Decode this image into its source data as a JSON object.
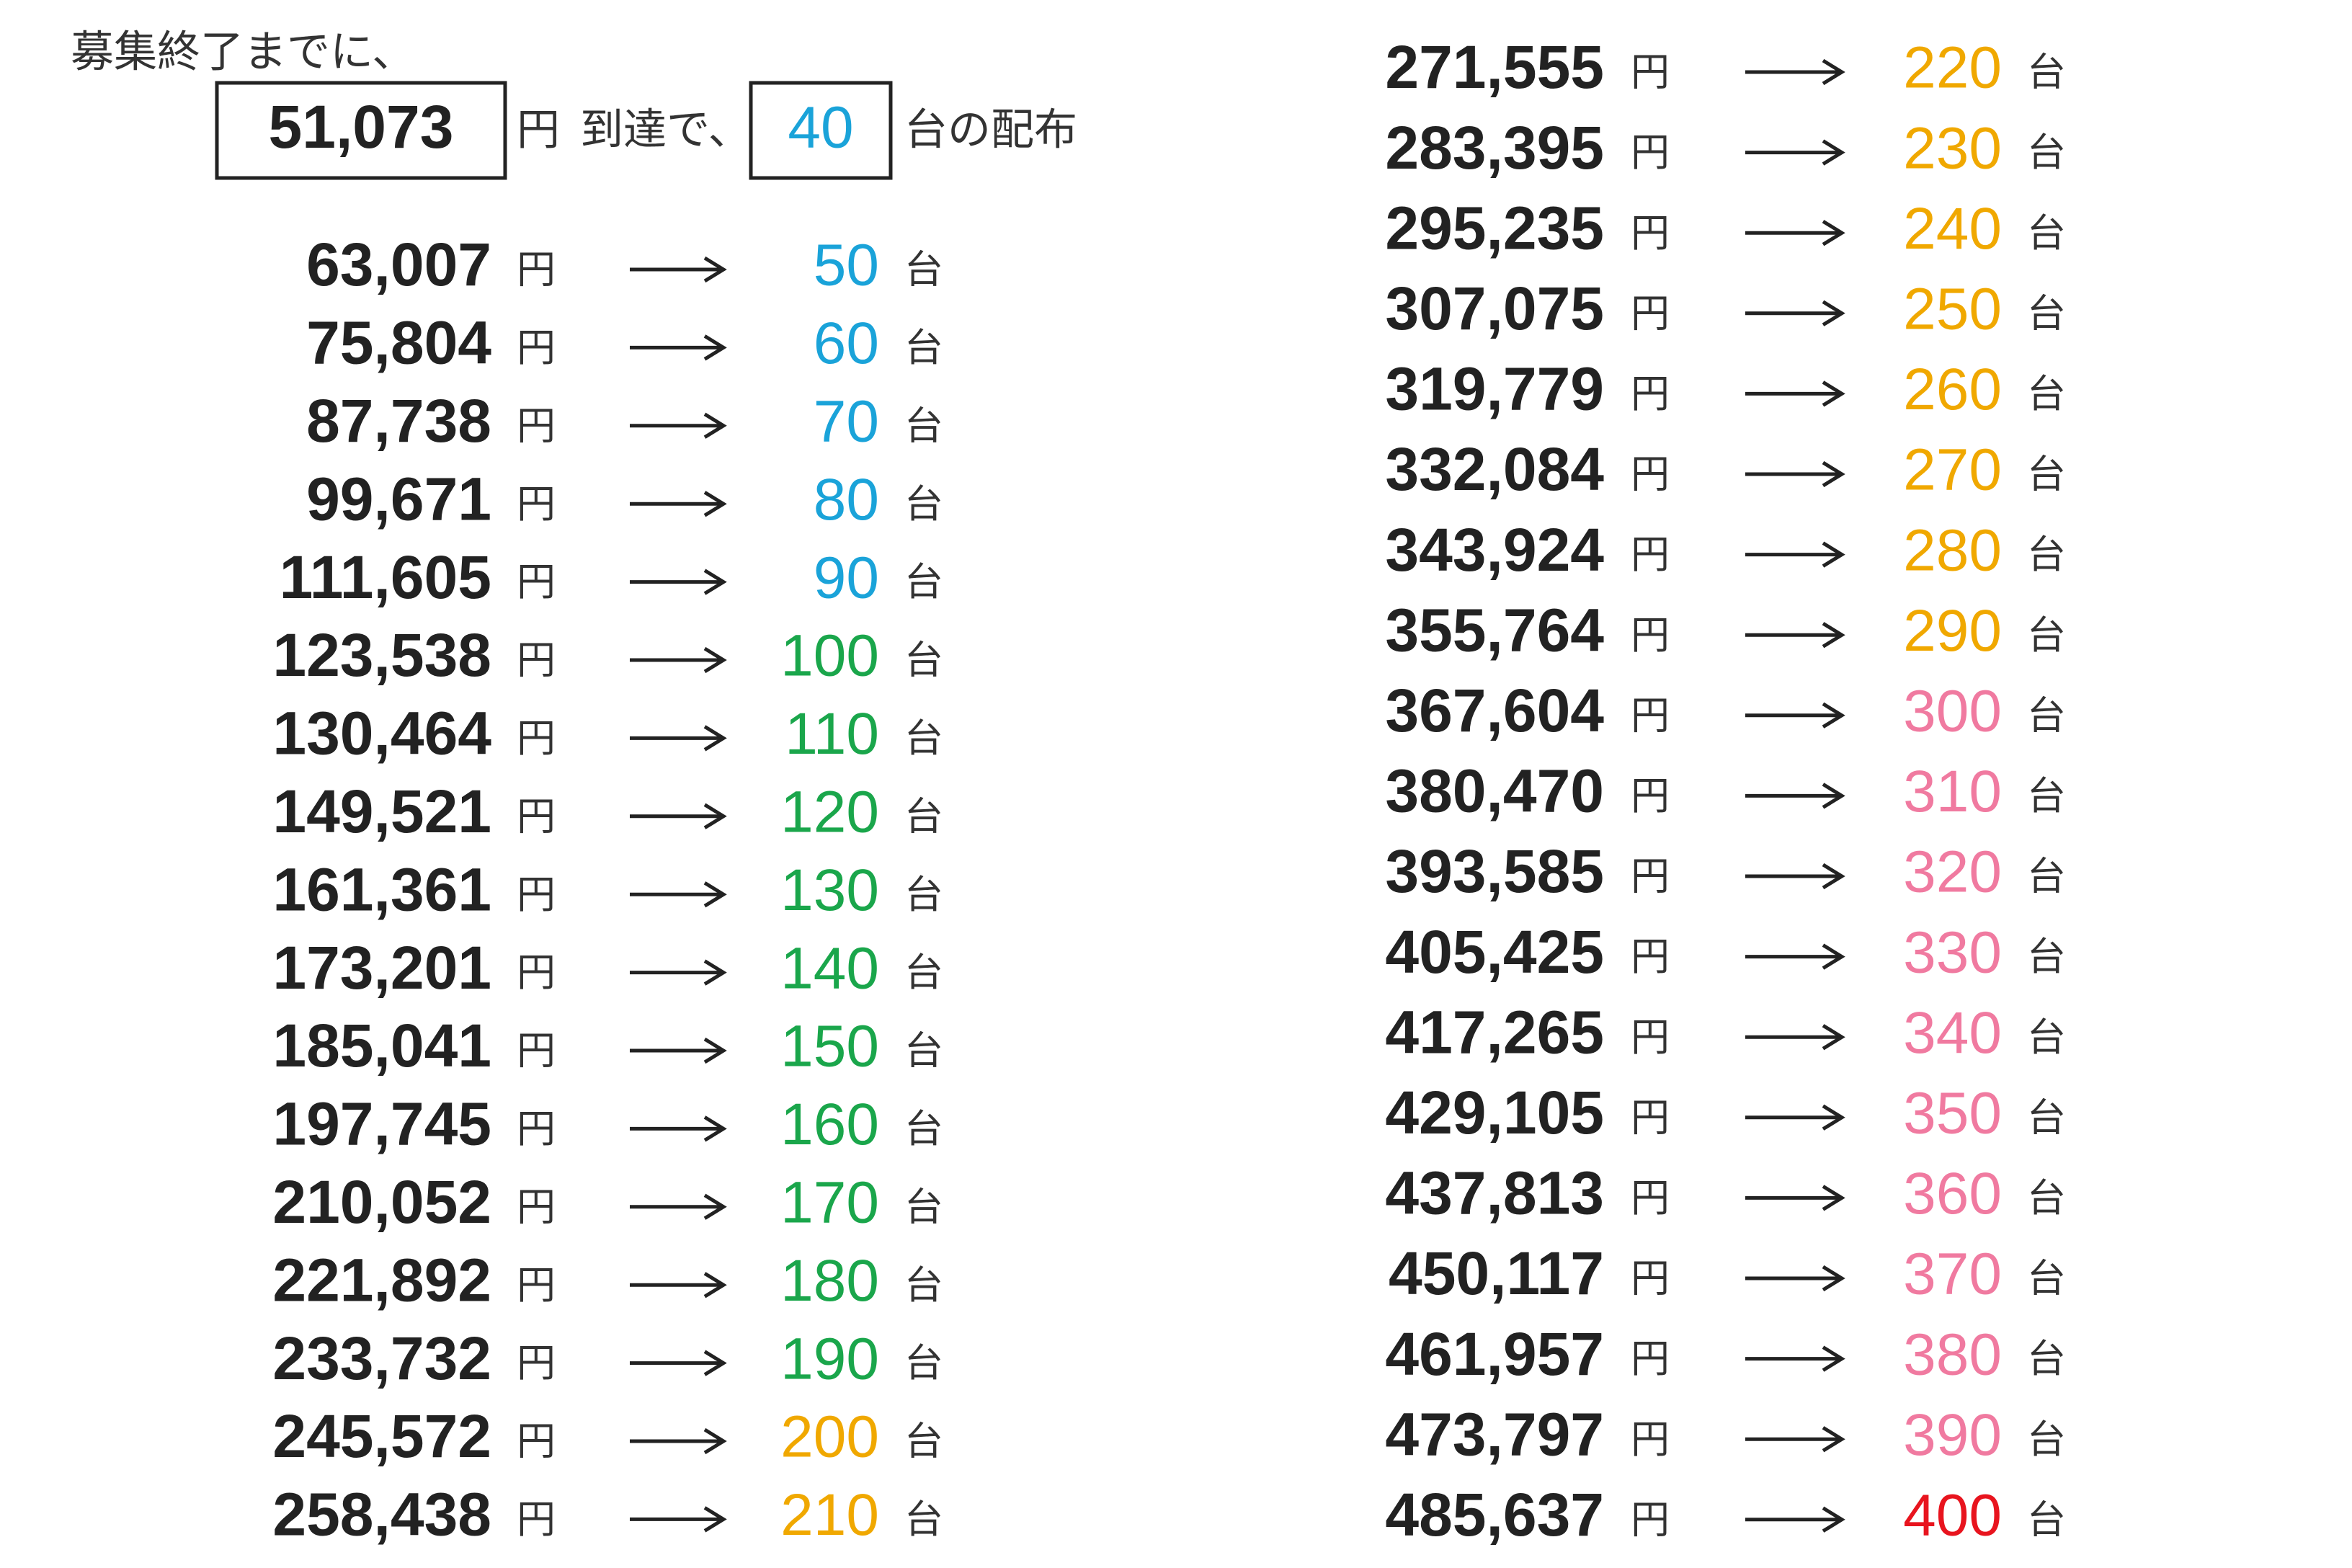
{
  "header": {
    "title": "募集終了までに、",
    "current_amount": "51,073",
    "yen": "円",
    "reach_text": "到達で、",
    "current_count": "40",
    "count_text": "台の配布",
    "count_color": "#1aa3d9"
  },
  "yen_unit": "円",
  "count_unit": "台",
  "columns": [
    [
      {
        "amount": "63,007",
        "count": "50",
        "color": "#1aa3d9"
      },
      {
        "amount": "75,804",
        "count": "60",
        "color": "#1aa3d9"
      },
      {
        "amount": "87,738",
        "count": "70",
        "color": "#1aa3d9"
      },
      {
        "amount": "99,671",
        "count": "80",
        "color": "#1aa3d9"
      },
      {
        "amount": "111,605",
        "count": "90",
        "color": "#1aa3d9"
      },
      {
        "amount": "123,538",
        "count": "100",
        "color": "#1aa64b"
      },
      {
        "amount": "130,464",
        "count": "110",
        "color": "#1aa64b"
      },
      {
        "amount": "149,521",
        "count": "120",
        "color": "#1aa64b"
      },
      {
        "amount": "161,361",
        "count": "130",
        "color": "#1aa64b"
      },
      {
        "amount": "173,201",
        "count": "140",
        "color": "#1aa64b"
      },
      {
        "amount": "185,041",
        "count": "150",
        "color": "#1aa64b"
      },
      {
        "amount": "197,745",
        "count": "160",
        "color": "#1aa64b"
      },
      {
        "amount": "210,052",
        "count": "170",
        "color": "#1aa64b"
      },
      {
        "amount": "221,892",
        "count": "180",
        "color": "#1aa64b"
      },
      {
        "amount": "233,732",
        "count": "190",
        "color": "#1aa64b"
      },
      {
        "amount": "245,572",
        "count": "200",
        "color": "#f0a800"
      },
      {
        "amount": "258,438",
        "count": "210",
        "color": "#f0a800"
      }
    ],
    [
      {
        "amount": "271,555",
        "count": "220",
        "color": "#f0a800"
      },
      {
        "amount": "283,395",
        "count": "230",
        "color": "#f0a800"
      },
      {
        "amount": "295,235",
        "count": "240",
        "color": "#f0a800"
      },
      {
        "amount": "307,075",
        "count": "250",
        "color": "#f0a800"
      },
      {
        "amount": "319,779",
        "count": "260",
        "color": "#f0a800"
      },
      {
        "amount": "332,084",
        "count": "270",
        "color": "#f0a800"
      },
      {
        "amount": "343,924",
        "count": "280",
        "color": "#f0a800"
      },
      {
        "amount": "355,764",
        "count": "290",
        "color": "#f0a800"
      },
      {
        "amount": "367,604",
        "count": "300",
        "color": "#f07aa0"
      },
      {
        "amount": "380,470",
        "count": "310",
        "color": "#f07aa0"
      },
      {
        "amount": "393,585",
        "count": "320",
        "color": "#f07aa0"
      },
      {
        "amount": "405,425",
        "count": "330",
        "color": "#f07aa0"
      },
      {
        "amount": "417,265",
        "count": "340",
        "color": "#f07aa0"
      },
      {
        "amount": "429,105",
        "count": "350",
        "color": "#f07aa0"
      },
      {
        "amount": "437,813",
        "count": "360",
        "color": "#f07aa0"
      },
      {
        "amount": "450,117",
        "count": "370",
        "color": "#f07aa0"
      },
      {
        "amount": "461,957",
        "count": "380",
        "color": "#f07aa0"
      },
      {
        "amount": "473,797",
        "count": "390",
        "color": "#f07aa0"
      },
      {
        "amount": "485,637",
        "count": "400",
        "color": "#e8141e"
      }
    ]
  ]
}
